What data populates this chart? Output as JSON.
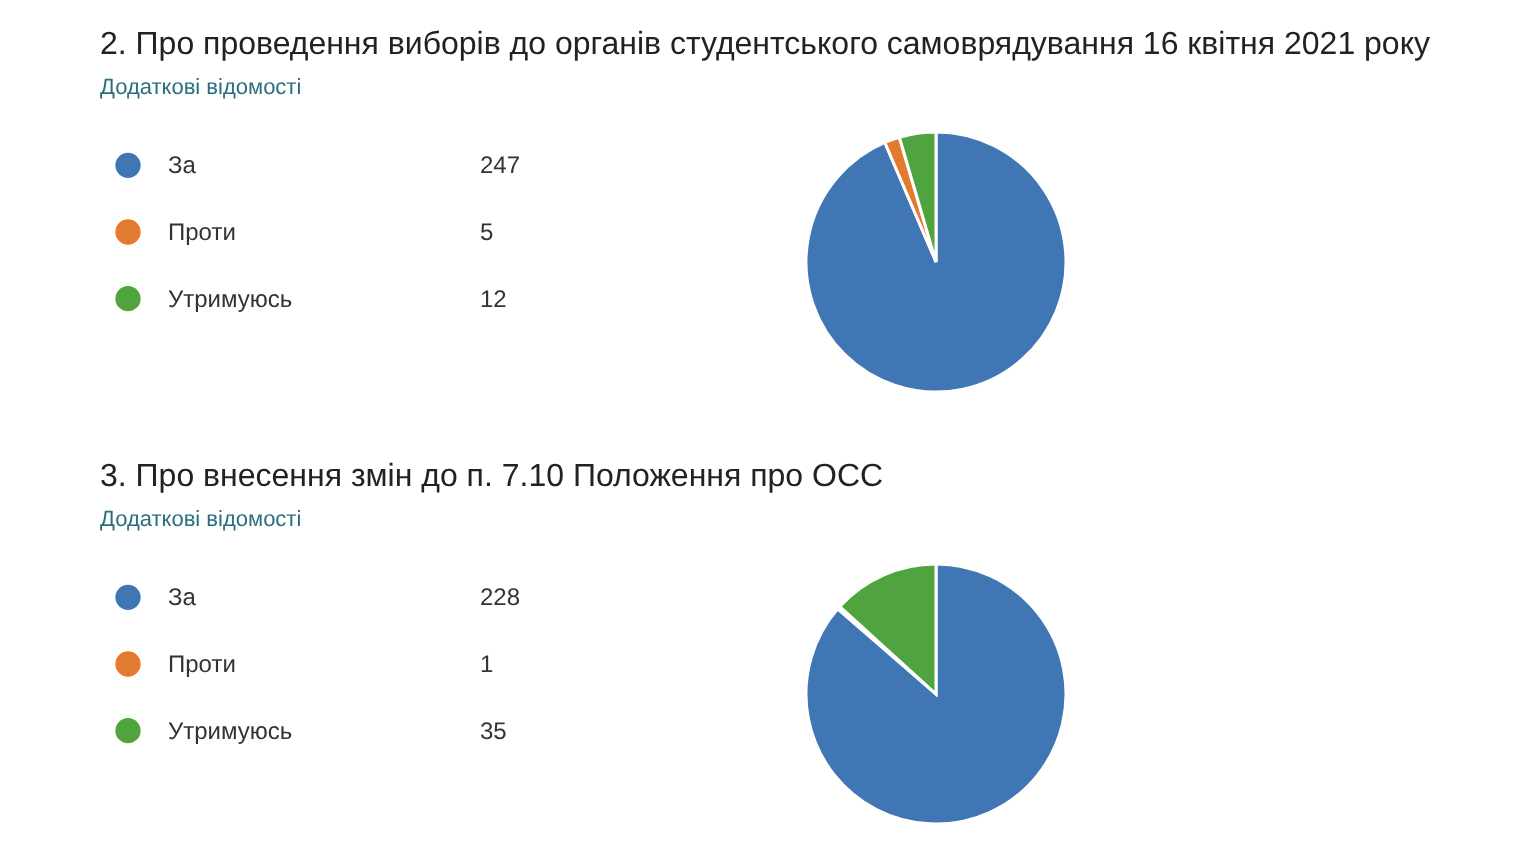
{
  "chart_data": [
    {
      "type": "pie",
      "title": "2. Про проведення виборів до органів студентського самоврядування 16 квітня 2021 року",
      "annotations": [
        "Додаткові відомості"
      ],
      "categories": [
        "За",
        "Проти",
        "Утримуюсь"
      ],
      "values": [
        247,
        5,
        12
      ],
      "colors": [
        "#3f76b3",
        "#e07b2f",
        "#4fa43f"
      ],
      "data_labels": true,
      "legend": "left"
    },
    {
      "type": "pie",
      "title": "3. Про внесення змін до п. 7.10 Положення про ОСС",
      "annotations": [
        "Додаткові відомості"
      ],
      "categories": [
        "За",
        "Проти",
        "Утримуюсь"
      ],
      "values": [
        228,
        1,
        35
      ],
      "colors": [
        "#3f76b3",
        "#e07b2f",
        "#4fa43f"
      ],
      "data_labels": true,
      "legend": "left"
    }
  ]
}
